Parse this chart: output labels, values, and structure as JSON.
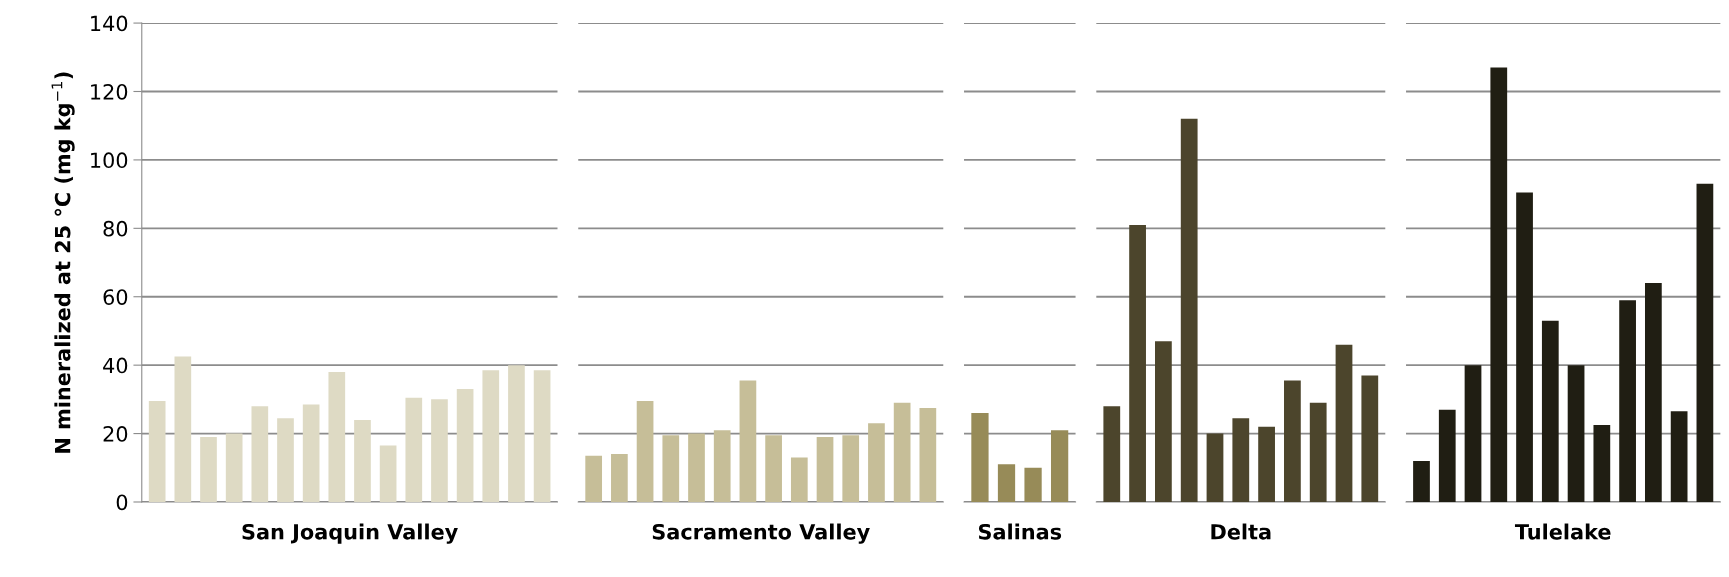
{
  "chart_data": [
    {
      "type": "bar",
      "xlabel": "San Joaquin Valley",
      "ylabel": "N mineralized at 25 °C (mg kg$^{−1}$)",
      "categories": [
        null,
        null,
        null,
        null,
        null,
        null,
        null,
        null,
        null,
        null,
        null,
        null,
        null,
        null,
        null,
        null
      ],
      "values": [
        29.5,
        42.5,
        19,
        20,
        28,
        24.5,
        28.5,
        38,
        24,
        16.5,
        30.5,
        30,
        33,
        38.5,
        40,
        38.5
      ],
      "color": "#dedac4",
      "ylim": [
        0,
        140
      ],
      "yticks": [
        0,
        20,
        40,
        60,
        80,
        100,
        120,
        140
      ],
      "grid": "y",
      "tick_labels": "y"
    },
    {
      "type": "bar",
      "xlabel": "Sacramento Valley",
      "categories": [
        null,
        null,
        null,
        null,
        null,
        null,
        null,
        null,
        null,
        null,
        null,
        null,
        null,
        null
      ],
      "values": [
        13.5,
        14,
        29.5,
        19.5,
        20,
        21,
        35.5,
        19.5,
        13,
        19,
        19.5,
        23,
        29,
        27.5
      ],
      "color": "#c6be98",
      "ylim": [
        0,
        140
      ],
      "yticks": [
        0,
        20,
        40,
        60,
        80,
        100,
        120,
        140
      ],
      "grid": "y",
      "tick_labels": false
    },
    {
      "type": "bar",
      "xlabel": "Salinas",
      "categories": [
        null,
        null,
        null,
        null
      ],
      "values": [
        26,
        11,
        10,
        21
      ],
      "color": "#978b58",
      "ylim": [
        0,
        140
      ],
      "yticks": [
        0,
        20,
        40,
        60,
        80,
        100,
        120,
        140
      ],
      "grid": "y",
      "tick_labels": false
    },
    {
      "type": "bar",
      "xlabel": "Delta",
      "categories": [
        null,
        null,
        null,
        null,
        null,
        null,
        null,
        null,
        null,
        null,
        null
      ],
      "values": [
        28,
        81,
        47,
        112,
        20,
        24.5,
        22,
        35.5,
        29,
        46,
        37
      ],
      "color": "#4c452c",
      "ylim": [
        0,
        140
      ],
      "yticks": [
        0,
        20,
        40,
        60,
        80,
        100,
        120,
        140
      ],
      "grid": "y",
      "tick_labels": false
    },
    {
      "type": "bar",
      "xlabel": "Tulelake",
      "categories": [
        null,
        null,
        null,
        null,
        null,
        null,
        null,
        null,
        null,
        null,
        null,
        null
      ],
      "values": [
        12,
        27,
        40,
        127,
        90.5,
        53,
        40,
        22.5,
        59,
        64,
        26.5,
        93
      ],
      "color": "#201e13",
      "ylim": [
        0,
        140
      ],
      "yticks": [
        0,
        20,
        40,
        60,
        80,
        100,
        120,
        140
      ],
      "grid": "y",
      "tick_labels": false
    }
  ]
}
